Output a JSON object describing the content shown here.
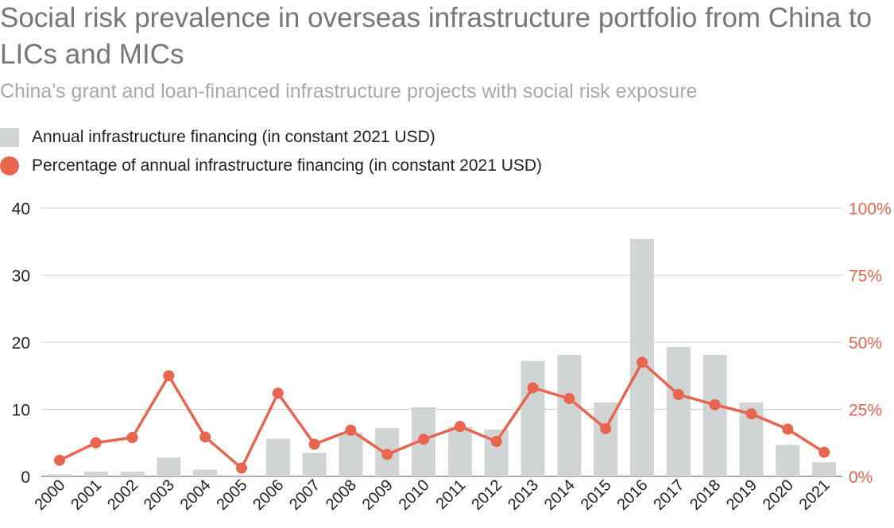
{
  "header": {
    "title": "Social risk prevalence in overseas infrastructure portfolio from China to LICs and MICs",
    "subtitle": "China's grant and loan-financed infrastructure projects with social risk exposure"
  },
  "legend": [
    {
      "label": "Annual infrastructure financing (in constant 2021 USD)",
      "color": "#d1d4d4",
      "shape": "square"
    },
    {
      "label": "Percentage of annual infrastructure financing (in constant 2021 USD)",
      "color": "#e8654f",
      "shape": "circle"
    }
  ],
  "chart_data": {
    "type": "bar",
    "categories": [
      "2000",
      "2001",
      "2002",
      "2003",
      "2004",
      "2005",
      "2006",
      "2007",
      "2008",
      "2009",
      "2010",
      "2011",
      "2012",
      "2013",
      "2014",
      "2015",
      "2016",
      "2017",
      "2018",
      "2019",
      "2020",
      "2021"
    ],
    "series": [
      {
        "name": "Annual infrastructure financing (in constant 2021 USD)",
        "type": "bar",
        "axis": "left",
        "color": "#d1d4d4",
        "values": [
          0.3,
          0.7,
          0.7,
          2.8,
          1.0,
          0.2,
          5.6,
          3.5,
          6.5,
          7.2,
          10.3,
          7.4,
          7.0,
          17.2,
          18.1,
          11.0,
          35.4,
          19.3,
          18.1,
          11.0,
          4.7,
          2.1
        ]
      },
      {
        "name": "Percentage of annual infrastructure financing (in constant 2021 USD)",
        "type": "line",
        "axis": "right",
        "color": "#e8654f",
        "values": [
          6,
          12.5,
          14.5,
          37.5,
          14.7,
          3.1,
          31,
          12,
          17.2,
          8.2,
          13.8,
          18.6,
          13,
          33,
          29,
          17.8,
          42.5,
          30.5,
          26.7,
          23.3,
          17.6,
          9
        ]
      }
    ],
    "ylim_left": [
      0,
      40
    ],
    "yticks_left": [
      "0",
      "10",
      "20",
      "30",
      "40"
    ],
    "ylim_right": [
      0,
      100
    ],
    "yticks_right": [
      "0%",
      "25%",
      "50%",
      "75%",
      "100%"
    ],
    "grid": true,
    "legend_position": "top-left"
  }
}
